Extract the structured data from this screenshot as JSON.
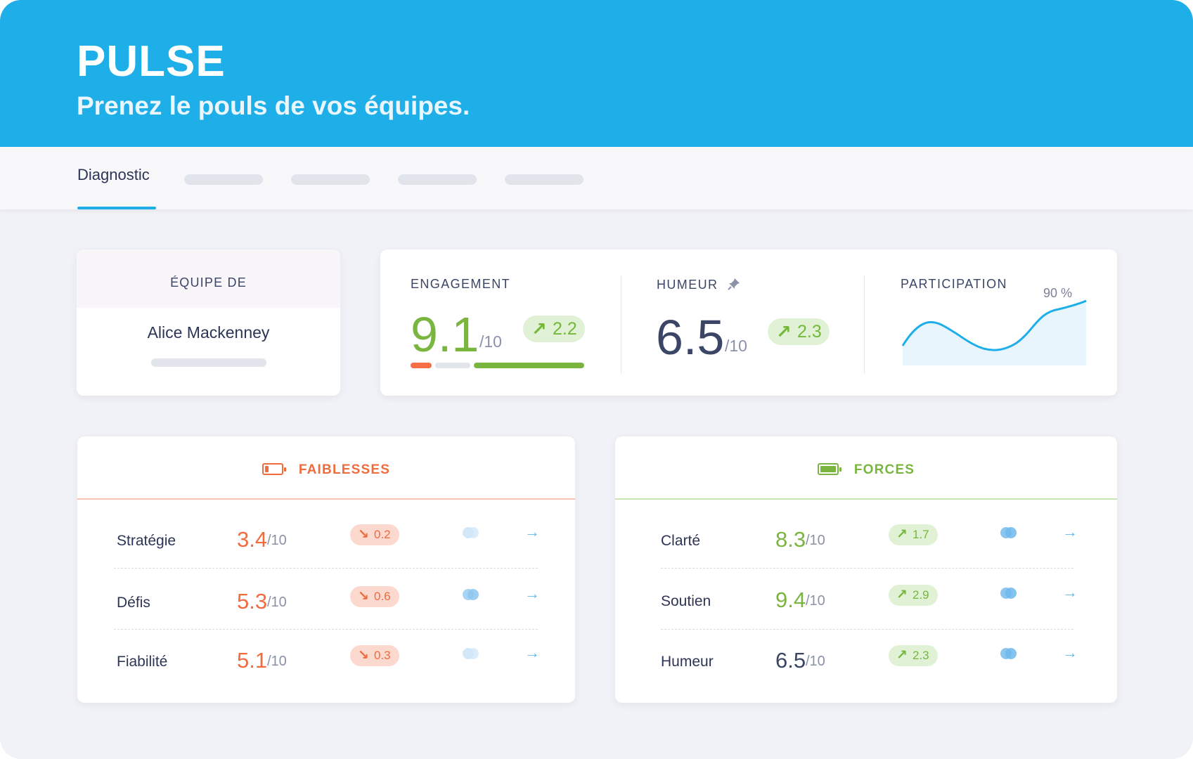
{
  "app": {
    "title": "PULSE",
    "subtitle": "Prenez le pouls de vos équipes.",
    "brand_color": "#1eaee8"
  },
  "tabs": {
    "active_label": "Diagnostic"
  },
  "team": {
    "heading": "ÉQUIPE DE",
    "name": "Alice Mackenney"
  },
  "metrics": {
    "engagement": {
      "label": "ENGAGEMENT",
      "score": "9.1",
      "denom": "/10",
      "delta": "2.2",
      "color": "#7ab63f"
    },
    "humeur": {
      "label": "HUMEUR",
      "score": "6.5",
      "denom": "/10",
      "delta": "2.3",
      "icon": "pin-icon",
      "color": "#3b4566"
    },
    "participation": {
      "label": "PARTICIPATION",
      "value_label": "90 %"
    }
  },
  "weaknesses": {
    "title": "FAIBLESSES",
    "icon": "battery-low-icon",
    "color": "#f06c3e",
    "rows": [
      {
        "label": "Stratégie",
        "score": "3.4",
        "denom": "/10",
        "delta": "0.2"
      },
      {
        "label": "Défis",
        "score": "5.3",
        "denom": "/10",
        "delta": "0.6"
      },
      {
        "label": "Fiabilité",
        "score": "5.1",
        "denom": "/10",
        "delta": "0.3"
      }
    ]
  },
  "strengths": {
    "title": "FORCES",
    "icon": "battery-full-icon",
    "color": "#7ab63f",
    "rows": [
      {
        "label": "Clarté",
        "score": "8.3",
        "denom": "/10",
        "delta": "1.7",
        "score_color": "#7ab63f"
      },
      {
        "label": "Soutien",
        "score": "9.4",
        "denom": "/10",
        "delta": "2.9",
        "score_color": "#7ab63f"
      },
      {
        "label": "Humeur",
        "score": "6.5",
        "denom": "/10",
        "delta": "2.3",
        "score_color": "#3b4566"
      }
    ]
  }
}
